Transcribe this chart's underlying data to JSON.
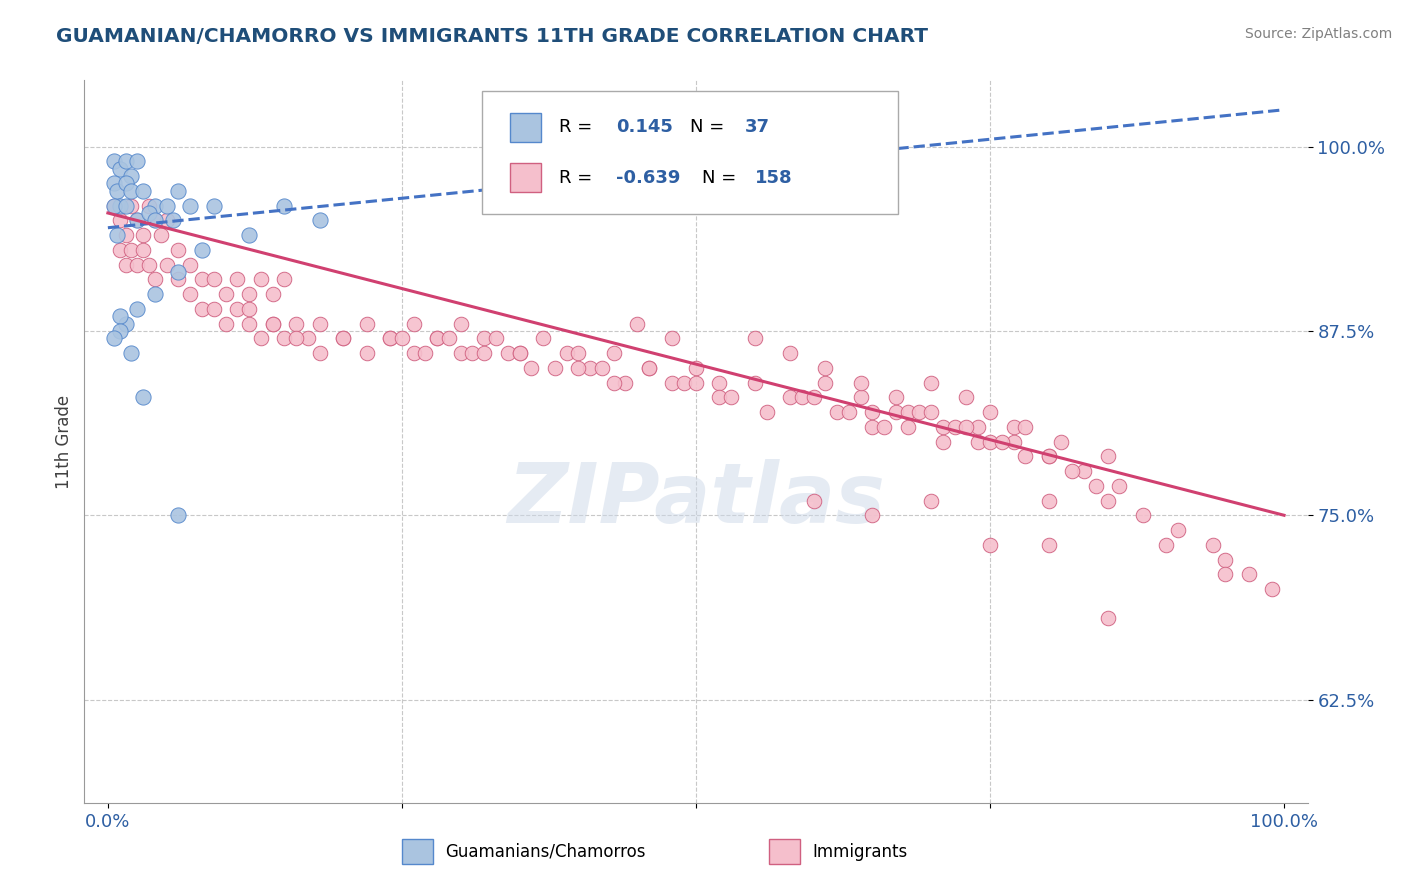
{
  "title": "GUAMANIAN/CHAMORRO VS IMMIGRANTS 11TH GRADE CORRELATION CHART",
  "source_text": "Source: ZipAtlas.com",
  "ylabel_label": "11th Grade",
  "y_ticks": [
    0.625,
    0.75,
    0.875,
    1.0
  ],
  "y_tick_labels": [
    "62.5%",
    "75.0%",
    "87.5%",
    "100.0%"
  ],
  "ylim": [
    0.555,
    1.045
  ],
  "xlim": [
    -0.02,
    1.02
  ],
  "blue_R": "0.145",
  "blue_N": "37",
  "pink_R": "-0.639",
  "pink_N": "158",
  "blue_color": "#aac4e0",
  "blue_edge_color": "#5588cc",
  "pink_color": "#f5bfcc",
  "pink_edge_color": "#d06080",
  "blue_line_color": "#4472c4",
  "pink_line_color": "#d04070",
  "watermark": "ZIPatlas",
  "legend_blue_label": "Guamanians/Chamorros",
  "legend_pink_label": "Immigrants",
  "title_color": "#1f4e79",
  "source_color": "#808080",
  "axis_label_color": "#404040",
  "tick_color": "#2e5fa3",
  "blue_scatter_x": [
    0.005,
    0.01,
    0.005,
    0.015,
    0.008,
    0.02,
    0.015,
    0.01,
    0.025,
    0.02,
    0.005,
    0.015,
    0.03,
    0.025,
    0.008,
    0.04,
    0.035,
    0.05,
    0.04,
    0.06,
    0.07,
    0.055,
    0.08,
    0.09,
    0.12,
    0.15,
    0.18,
    0.06,
    0.04,
    0.025,
    0.015,
    0.01,
    0.01,
    0.005,
    0.02,
    0.03,
    0.06
  ],
  "blue_scatter_y": [
    0.99,
    0.985,
    0.975,
    0.99,
    0.97,
    0.98,
    0.975,
    0.96,
    0.99,
    0.97,
    0.96,
    0.96,
    0.97,
    0.95,
    0.94,
    0.96,
    0.955,
    0.96,
    0.95,
    0.97,
    0.96,
    0.95,
    0.93,
    0.96,
    0.94,
    0.96,
    0.95,
    0.915,
    0.9,
    0.89,
    0.88,
    0.885,
    0.875,
    0.87,
    0.86,
    0.83,
    0.75
  ],
  "pink_scatter_x": [
    0.005,
    0.01,
    0.015,
    0.02,
    0.025,
    0.03,
    0.035,
    0.04,
    0.045,
    0.05,
    0.01,
    0.015,
    0.02,
    0.025,
    0.03,
    0.035,
    0.04,
    0.05,
    0.06,
    0.07,
    0.06,
    0.07,
    0.08,
    0.09,
    0.1,
    0.11,
    0.12,
    0.13,
    0.14,
    0.15,
    0.08,
    0.09,
    0.1,
    0.11,
    0.12,
    0.13,
    0.14,
    0.15,
    0.16,
    0.17,
    0.12,
    0.14,
    0.16,
    0.18,
    0.2,
    0.22,
    0.24,
    0.26,
    0.28,
    0.3,
    0.18,
    0.2,
    0.22,
    0.24,
    0.26,
    0.28,
    0.3,
    0.32,
    0.34,
    0.36,
    0.25,
    0.27,
    0.29,
    0.31,
    0.33,
    0.35,
    0.37,
    0.39,
    0.41,
    0.43,
    0.32,
    0.35,
    0.38,
    0.4,
    0.42,
    0.44,
    0.46,
    0.48,
    0.5,
    0.52,
    0.4,
    0.43,
    0.46,
    0.49,
    0.52,
    0.55,
    0.58,
    0.61,
    0.64,
    0.67,
    0.5,
    0.53,
    0.56,
    0.59,
    0.62,
    0.65,
    0.68,
    0.71,
    0.74,
    0.77,
    0.6,
    0.63,
    0.66,
    0.69,
    0.72,
    0.75,
    0.78,
    0.81,
    0.7,
    0.73,
    0.65,
    0.68,
    0.71,
    0.74,
    0.77,
    0.8,
    0.83,
    0.86,
    0.75,
    0.78,
    0.55,
    0.58,
    0.61,
    0.64,
    0.67,
    0.7,
    0.73,
    0.76,
    0.45,
    0.48,
    0.85,
    0.88,
    0.91,
    0.94,
    0.95,
    0.97,
    0.99,
    0.8,
    0.82,
    0.84
  ],
  "pink_scatter_y": [
    0.96,
    0.95,
    0.94,
    0.96,
    0.95,
    0.94,
    0.96,
    0.95,
    0.94,
    0.95,
    0.93,
    0.92,
    0.93,
    0.92,
    0.93,
    0.92,
    0.91,
    0.92,
    0.93,
    0.92,
    0.91,
    0.9,
    0.91,
    0.91,
    0.9,
    0.91,
    0.9,
    0.91,
    0.9,
    0.91,
    0.89,
    0.89,
    0.88,
    0.89,
    0.88,
    0.87,
    0.88,
    0.87,
    0.88,
    0.87,
    0.89,
    0.88,
    0.87,
    0.88,
    0.87,
    0.88,
    0.87,
    0.88,
    0.87,
    0.88,
    0.86,
    0.87,
    0.86,
    0.87,
    0.86,
    0.87,
    0.86,
    0.87,
    0.86,
    0.85,
    0.87,
    0.86,
    0.87,
    0.86,
    0.87,
    0.86,
    0.87,
    0.86,
    0.85,
    0.86,
    0.86,
    0.86,
    0.85,
    0.86,
    0.85,
    0.84,
    0.85,
    0.84,
    0.85,
    0.84,
    0.85,
    0.84,
    0.85,
    0.84,
    0.83,
    0.84,
    0.83,
    0.84,
    0.83,
    0.82,
    0.84,
    0.83,
    0.82,
    0.83,
    0.82,
    0.81,
    0.82,
    0.81,
    0.8,
    0.81,
    0.83,
    0.82,
    0.81,
    0.82,
    0.81,
    0.8,
    0.79,
    0.8,
    0.84,
    0.83,
    0.82,
    0.81,
    0.8,
    0.81,
    0.8,
    0.79,
    0.78,
    0.77,
    0.82,
    0.81,
    0.87,
    0.86,
    0.85,
    0.84,
    0.83,
    0.82,
    0.81,
    0.8,
    0.88,
    0.87,
    0.76,
    0.75,
    0.74,
    0.73,
    0.72,
    0.71,
    0.7,
    0.79,
    0.78,
    0.77
  ],
  "pink_outliers_x": [
    0.75,
    0.8,
    0.85,
    0.9,
    0.95,
    0.85,
    0.8,
    0.7,
    0.65,
    0.6
  ],
  "pink_outliers_y": [
    0.73,
    0.73,
    0.68,
    0.73,
    0.71,
    0.79,
    0.76,
    0.76,
    0.75,
    0.76
  ]
}
